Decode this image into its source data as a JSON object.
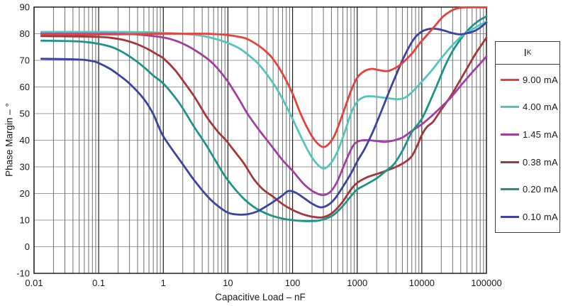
{
  "figure": {
    "x_axis": {
      "title": "Capacitive Load – nF",
      "ticks": [
        "0.01",
        "0.1",
        "1",
        "10",
        "100",
        "1000",
        "10000",
        "100000"
      ]
    },
    "y_axis": {
      "title": "Phase Margin – °",
      "ticks": [
        "90",
        "80",
        "70",
        "60",
        "50",
        "40",
        "30",
        "20",
        "10",
        "0",
        "-10"
      ]
    },
    "legend": {
      "title_main": "I",
      "title_sub": "K"
    }
  },
  "colors": {
    "grid_minor": "#6f6f6f",
    "grid_major": "#1f1f1f",
    "grid_horizontal": "#9c9c9c",
    "plot_border": "#1f1f1f"
  },
  "chart_data": {
    "type": "line",
    "title": "",
    "xlabel": "Capacitive Load – nF",
    "ylabel": "Phase Margin – °",
    "x_scale": "log",
    "xlim": [
      0.01,
      100000
    ],
    "ylim": [
      -10,
      90
    ],
    "y_tick_step": 10,
    "grid": "on",
    "legend_position": "right",
    "legend_title": "IK",
    "series": [
      {
        "name": "0.38 mA",
        "color": "#a4373c",
        "points": [
          [
            0.013,
            79.1
          ],
          [
            0.05,
            79.0
          ],
          [
            0.1,
            78.8
          ],
          [
            0.15,
            78.5
          ],
          [
            0.25,
            77.6
          ],
          [
            0.4,
            76.0
          ],
          [
            0.6,
            74.0
          ],
          [
            0.8,
            72.2
          ],
          [
            1,
            70.8
          ],
          [
            1.5,
            66.5
          ],
          [
            2,
            62.5
          ],
          [
            3,
            56.5
          ],
          [
            4,
            51.5
          ],
          [
            5,
            47.8
          ],
          [
            7,
            43.2
          ],
          [
            9.3,
            40.0
          ],
          [
            13,
            35.5
          ],
          [
            18,
            31.0
          ],
          [
            25,
            25.5
          ],
          [
            35,
            21.5
          ],
          [
            50,
            18.8
          ],
          [
            70,
            16.0
          ],
          [
            100,
            13.8
          ],
          [
            140,
            12.3
          ],
          [
            200,
            11.3
          ],
          [
            280,
            11.0
          ],
          [
            360,
            11.8
          ],
          [
            450,
            13.5
          ],
          [
            600,
            17.0
          ],
          [
            800,
            21.5
          ],
          [
            1000,
            24.0
          ],
          [
            1400,
            26.0
          ],
          [
            2000,
            27.3
          ],
          [
            2800,
            28.5
          ],
          [
            4000,
            30.0
          ],
          [
            5500,
            31.8
          ],
          [
            7000,
            34.0
          ],
          [
            8500,
            38.0
          ],
          [
            10000,
            42.0
          ],
          [
            12000,
            45.0
          ],
          [
            15000,
            47.0
          ],
          [
            20000,
            51.5
          ],
          [
            27000,
            56.0
          ],
          [
            36000,
            61.0
          ],
          [
            50000,
            67.0
          ],
          [
            70000,
            73.0
          ],
          [
            100000,
            78.5
          ]
        ]
      },
      {
        "name": "1.45 mA",
        "color": "#a23ea2",
        "points": [
          [
            0.013,
            80.3
          ],
          [
            0.1,
            80.2
          ],
          [
            0.3,
            79.9
          ],
          [
            0.5,
            79.5
          ],
          [
            1,
            78.6
          ],
          [
            1.5,
            77.5
          ],
          [
            2,
            76.3
          ],
          [
            3,
            74.0
          ],
          [
            5,
            70.3
          ],
          [
            7,
            66.8
          ],
          [
            10,
            62.0
          ],
          [
            15,
            55.2
          ],
          [
            20,
            50.0
          ],
          [
            30,
            44.0
          ],
          [
            45,
            38.5
          ],
          [
            70,
            32.5
          ],
          [
            100,
            28.5
          ],
          [
            150,
            23.5
          ],
          [
            210,
            20.7
          ],
          [
            290,
            19.4
          ],
          [
            380,
            20.5
          ],
          [
            480,
            24.0
          ],
          [
            600,
            29.5
          ],
          [
            750,
            35.0
          ],
          [
            900,
            38.5
          ],
          [
            1100,
            39.8
          ],
          [
            1500,
            40.0
          ],
          [
            2000,
            39.7
          ],
          [
            2700,
            39.4
          ],
          [
            3500,
            39.8
          ],
          [
            5000,
            41.0
          ],
          [
            7000,
            43.5
          ],
          [
            10000,
            46.0
          ],
          [
            14000,
            49.0
          ],
          [
            20000,
            52.5
          ],
          [
            28000,
            56.0
          ],
          [
            40000,
            60.5
          ],
          [
            60000,
            65.5
          ],
          [
            80000,
            68.8
          ],
          [
            100000,
            71.5
          ]
        ]
      },
      {
        "name": "0.20 mA",
        "color": "#1e9488",
        "points": [
          [
            0.013,
            77.4
          ],
          [
            0.05,
            77.1
          ],
          [
            0.1,
            76.2
          ],
          [
            0.15,
            75.2
          ],
          [
            0.2,
            74.0
          ],
          [
            0.3,
            71.5
          ],
          [
            0.5,
            67.5
          ],
          [
            0.7,
            64.3
          ],
          [
            1,
            61.3
          ],
          [
            1.5,
            56.3
          ],
          [
            2,
            52.0
          ],
          [
            3,
            45.0
          ],
          [
            4,
            40.5
          ],
          [
            5,
            36.8
          ],
          [
            7,
            30.8
          ],
          [
            9.3,
            26.0
          ],
          [
            13,
            21.5
          ],
          [
            18,
            17.8
          ],
          [
            25,
            15.0
          ],
          [
            35,
            13.0
          ],
          [
            50,
            11.5
          ],
          [
            80,
            10.3
          ],
          [
            120,
            9.8
          ],
          [
            180,
            9.6
          ],
          [
            250,
            9.8
          ],
          [
            350,
            10.8
          ],
          [
            450,
            12.3
          ],
          [
            600,
            15.3
          ],
          [
            800,
            19.0
          ],
          [
            1000,
            21.5
          ],
          [
            1400,
            23.5
          ],
          [
            2000,
            25.7
          ],
          [
            2800,
            28.5
          ],
          [
            3700,
            31.0
          ],
          [
            5000,
            36.0
          ],
          [
            7000,
            43.0
          ],
          [
            9700,
            47.5
          ],
          [
            12000,
            52.0
          ],
          [
            16000,
            59.0
          ],
          [
            23000,
            68.0
          ],
          [
            30000,
            73.5
          ],
          [
            40000,
            78.0
          ],
          [
            55000,
            82.0
          ],
          [
            75000,
            84.8
          ],
          [
            100000,
            86.5
          ]
        ]
      },
      {
        "name": "4.00 mA",
        "color": "#52c6bb",
        "points": [
          [
            0.013,
            80.7
          ],
          [
            0.1,
            80.7
          ],
          [
            0.5,
            80.6
          ],
          [
            1,
            80.3
          ],
          [
            2,
            80.0
          ],
          [
            4,
            79.2
          ],
          [
            7,
            77.8
          ],
          [
            10,
            76.5
          ],
          [
            15,
            74.5
          ],
          [
            20,
            72.3
          ],
          [
            30,
            68.5
          ],
          [
            50,
            61.5
          ],
          [
            70,
            55.5
          ],
          [
            100,
            48.0
          ],
          [
            140,
            40.5
          ],
          [
            200,
            33.5
          ],
          [
            290,
            29.5
          ],
          [
            380,
            31.0
          ],
          [
            500,
            36.0
          ],
          [
            650,
            43.5
          ],
          [
            800,
            50.0
          ],
          [
            1000,
            54.5
          ],
          [
            1300,
            56.3
          ],
          [
            1700,
            56.5
          ],
          [
            2200,
            56.2
          ],
          [
            3000,
            55.8
          ],
          [
            4200,
            55.4
          ],
          [
            5500,
            56.0
          ],
          [
            7000,
            58.0
          ],
          [
            10000,
            62.0
          ],
          [
            14000,
            66.0
          ],
          [
            20000,
            70.8
          ],
          [
            28000,
            75.0
          ],
          [
            40000,
            78.8
          ],
          [
            55000,
            81.0
          ],
          [
            75000,
            83.0
          ],
          [
            100000,
            84.5
          ]
        ]
      },
      {
        "name": "0.10 mA",
        "color": "#3c43a0",
        "points": [
          [
            0.013,
            70.6
          ],
          [
            0.05,
            70.3
          ],
          [
            0.08,
            69.7
          ],
          [
            0.1,
            69.0
          ],
          [
            0.15,
            66.8
          ],
          [
            0.2,
            64.7
          ],
          [
            0.3,
            61.3
          ],
          [
            0.5,
            55.5
          ],
          [
            0.7,
            49.8
          ],
          [
            1,
            41.5
          ],
          [
            2,
            31.0
          ],
          [
            3,
            25.0
          ],
          [
            5,
            18.5
          ],
          [
            7,
            15.3
          ],
          [
            10,
            12.8
          ],
          [
            14,
            12.1
          ],
          [
            20,
            12.2
          ],
          [
            28,
            13.2
          ],
          [
            40,
            15.3
          ],
          [
            55,
            17.5
          ],
          [
            70,
            19.3
          ],
          [
            86,
            20.9
          ],
          [
            110,
            20.4
          ],
          [
            150,
            18.3
          ],
          [
            200,
            16.2
          ],
          [
            270,
            14.8
          ],
          [
            350,
            15.6
          ],
          [
            450,
            18.0
          ],
          [
            600,
            22.5
          ],
          [
            800,
            27.5
          ],
          [
            1000,
            32.0
          ],
          [
            1300,
            36.7
          ],
          [
            1700,
            42.5
          ],
          [
            2200,
            49.0
          ],
          [
            3000,
            57.2
          ],
          [
            4000,
            64.5
          ],
          [
            5000,
            70.0
          ],
          [
            6500,
            75.5
          ],
          [
            8000,
            78.8
          ],
          [
            10000,
            80.8
          ],
          [
            13000,
            81.8
          ],
          [
            17000,
            81.8
          ],
          [
            22000,
            81.2
          ],
          [
            28000,
            80.4
          ],
          [
            38000,
            79.8
          ],
          [
            50000,
            80.2
          ],
          [
            65000,
            81.0
          ],
          [
            80000,
            82.3
          ],
          [
            100000,
            84.2
          ]
        ]
      },
      {
        "name": "9.00 mA",
        "color": "#e8403a",
        "points": [
          [
            0.013,
            79.7
          ],
          [
            0.05,
            79.7
          ],
          [
            0.2,
            79.8
          ],
          [
            1,
            80.0
          ],
          [
            2,
            80.0
          ],
          [
            4,
            80.0
          ],
          [
            6,
            79.9
          ],
          [
            10,
            79.5
          ],
          [
            15,
            78.8
          ],
          [
            20,
            78.0
          ],
          [
            30,
            75.5
          ],
          [
            40,
            73.0
          ],
          [
            50,
            70.5
          ],
          [
            70,
            65.0
          ],
          [
            100,
            57.5
          ],
          [
            130,
            50.5
          ],
          [
            170,
            44.5
          ],
          [
            220,
            40.0
          ],
          [
            290,
            37.5
          ],
          [
            360,
            38.5
          ],
          [
            450,
            42.0
          ],
          [
            600,
            50.0
          ],
          [
            800,
            58.5
          ],
          [
            1000,
            63.5
          ],
          [
            1300,
            66.0
          ],
          [
            1700,
            66.8
          ],
          [
            2200,
            66.3
          ],
          [
            3000,
            66.0
          ],
          [
            4000,
            67.3
          ],
          [
            5000,
            69.0
          ],
          [
            7000,
            72.5
          ],
          [
            9000,
            76.0
          ],
          [
            12000,
            79.5
          ],
          [
            16000,
            83.0
          ],
          [
            21000,
            86.3
          ],
          [
            27000,
            88.3
          ],
          [
            35000,
            89.5
          ],
          [
            50000,
            89.9
          ],
          [
            100000,
            89.9
          ]
        ]
      }
    ],
    "legend_order": [
      "9.00 mA",
      "4.00 mA",
      "1.45 mA",
      "0.38 mA",
      "0.20 mA",
      "0.10 mA"
    ]
  }
}
